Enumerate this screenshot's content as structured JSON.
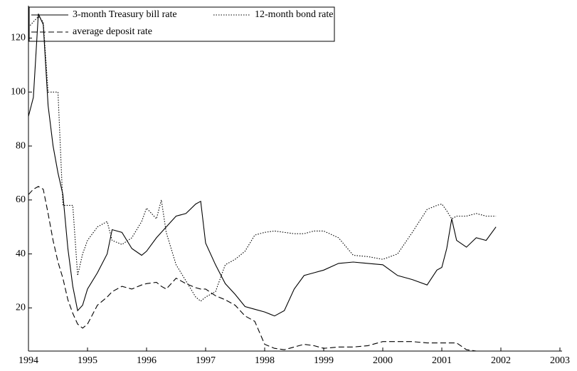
{
  "chart_data": {
    "type": "line",
    "x": [
      1994.0,
      1994.083,
      1994.167,
      1994.25,
      1994.333,
      1994.417,
      1994.5,
      1994.583,
      1994.667,
      1994.75,
      1994.833,
      1994.917,
      1995.0,
      1995.167,
      1995.333,
      1995.417,
      1995.583,
      1995.75,
      1995.917,
      1996.0,
      1996.167,
      1996.25,
      1996.333,
      1996.5,
      1996.667,
      1996.833,
      1996.917,
      1997.0,
      1997.167,
      1997.333,
      1997.5,
      1997.667,
      1997.833,
      1998.0,
      1998.167,
      1998.333,
      1998.5,
      1998.667,
      1998.833,
      1999.0,
      1999.25,
      1999.5,
      1999.75,
      2000.0,
      2000.25,
      2000.5,
      2000.75,
      2000.917,
      2001.0,
      2001.083,
      2001.167,
      2001.25,
      2001.417,
      2001.583,
      2001.75,
      2001.917
    ],
    "series": [
      {
        "name": "3-month Treasury bill rate",
        "color": "#000000",
        "style": "solid",
        "values": [
          91,
          98,
          129,
          125,
          95,
          80,
          70,
          62,
          42,
          28,
          19,
          21,
          27,
          33,
          40,
          49,
          48,
          42,
          39.5,
          41,
          46,
          48,
          50,
          54,
          55,
          58.5,
          59.5,
          44,
          36,
          29,
          25,
          20.5,
          19.5,
          18.5,
          17,
          19,
          27,
          32,
          33,
          34,
          36.5,
          37,
          36.5,
          36,
          32,
          30.5,
          28.5,
          34,
          35,
          42,
          53,
          45,
          42.5,
          46,
          45,
          50
        ]
      },
      {
        "name": "12-month bond rate",
        "color": "#000000",
        "style": "dotted",
        "values": [
          124,
          126,
          128,
          126,
          100,
          100,
          100,
          58,
          58,
          58,
          32,
          40,
          45,
          50,
          52,
          45,
          43.5,
          46,
          52,
          57,
          53,
          60,
          48,
          36,
          30,
          24,
          22.5,
          24,
          26,
          36,
          38,
          41,
          47,
          48,
          48.5,
          48,
          47.5,
          47.5,
          48.5,
          48.5,
          46,
          39.5,
          39,
          38,
          40,
          48,
          56.5,
          58,
          58.5,
          56,
          53,
          54,
          54,
          55,
          54,
          54
        ]
      },
      {
        "name": "average deposit rate",
        "color": "#000000",
        "style": "dashed",
        "values": [
          62,
          64,
          65,
          64,
          55,
          45,
          37,
          31,
          23,
          18,
          14,
          12.5,
          14,
          21,
          24,
          26,
          28,
          27,
          28.5,
          29,
          29.5,
          28,
          27,
          31,
          29,
          27.5,
          27,
          27,
          24.5,
          23,
          21,
          17,
          15,
          6.5,
          5,
          4.5,
          5.5,
          6.5,
          6,
          5,
          5.5,
          5.5,
          6,
          7.5,
          7.5,
          7.5,
          7,
          7,
          7,
          7,
          7,
          7,
          4.5,
          4,
          4,
          4
        ]
      }
    ],
    "xlim": [
      1994,
      2003
    ],
    "xticks": [
      1994,
      1995,
      1996,
      1997,
      1998,
      1999,
      2000,
      2001,
      2002,
      2003
    ],
    "ylim": [
      4,
      132
    ],
    "yticks": [
      20,
      40,
      60,
      80,
      100,
      120
    ],
    "grid": false,
    "legend": "top-left"
  }
}
